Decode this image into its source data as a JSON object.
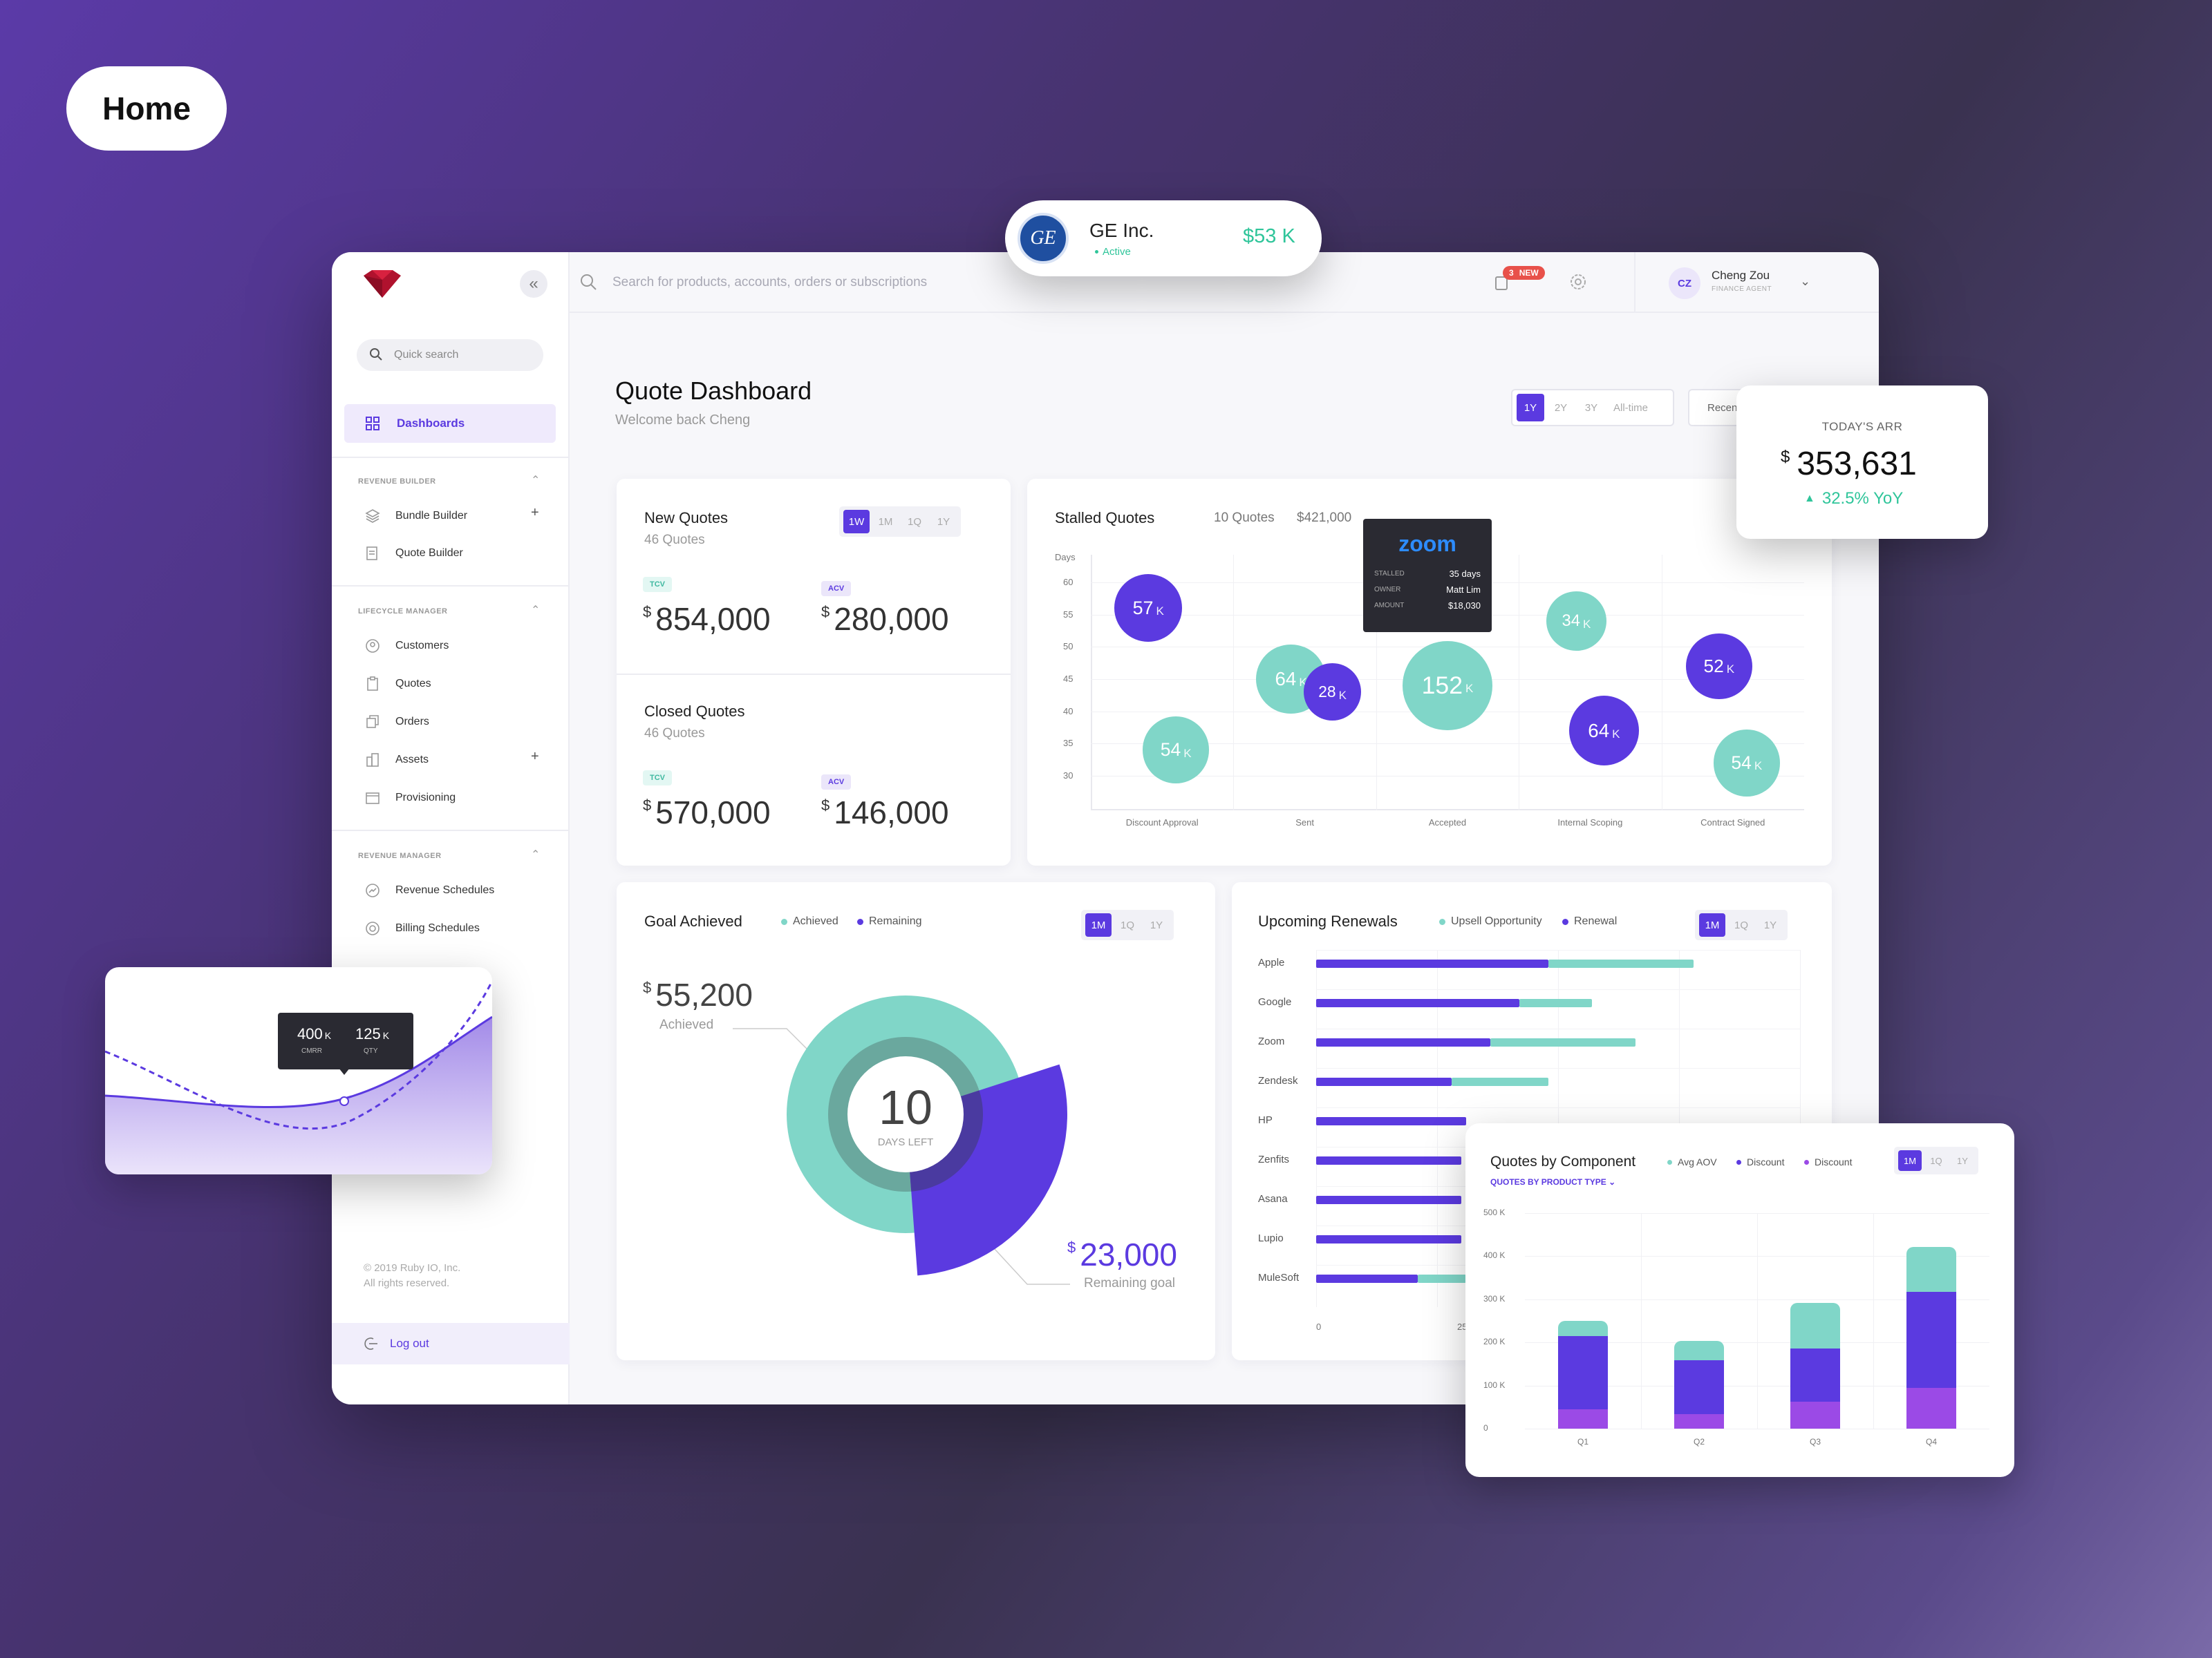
{
  "page": {
    "label": "Home"
  },
  "account_card": {
    "name": "GE Inc.",
    "status": "Active",
    "amount": "$53 K",
    "logo_text": "GE"
  },
  "arr_card": {
    "label": "TODAY'S ARR",
    "currency": "$",
    "value": "353,631",
    "change": "32.5% YoY"
  },
  "sidebar": {
    "quick_search_placeholder": "Quick search",
    "active_item": "Dashboards",
    "sections": [
      {
        "title": "REVENUE BUILDER",
        "items": [
          "Bundle Builder",
          "Quote Builder"
        ]
      },
      {
        "title": "LIFECYCLE MANAGER",
        "items": [
          "Customers",
          "Quotes",
          "Orders",
          "Assets",
          "Provisioning"
        ]
      },
      {
        "title": "REVENUE MANAGER",
        "items": [
          "Revenue Schedules",
          "Billing Schedules"
        ]
      }
    ],
    "copyright_line1": "© 2019 Ruby IO, Inc.",
    "copyright_line2": "All rights reserved.",
    "logout": "Log out"
  },
  "topbar": {
    "search_placeholder": "Search for products, accounts, orders or subscriptions",
    "notification_count": "3",
    "new_badge": "NEW",
    "user_initials": "CZ",
    "user_name": "Cheng Zou",
    "user_role": "FINANCE AGENT"
  },
  "header": {
    "title": "Quote Dashboard",
    "subtitle": "Welcome back Cheng",
    "ranges": [
      "1Y",
      "2Y",
      "3Y",
      "All-time"
    ],
    "active_range": "1Y",
    "recent_label": "Recen"
  },
  "new_quotes": {
    "title": "New Quotes",
    "count": "46 Quotes",
    "ranges": [
      "1W",
      "1M",
      "1Q",
      "1Y"
    ],
    "active_range": "1W",
    "tcv_label": "TCV",
    "tcv_currency": "$",
    "tcv": "854,000",
    "acv_label": "ACV",
    "acv_currency": "$",
    "acv": "280,000"
  },
  "closed_quotes": {
    "title": "Closed Quotes",
    "count": "46 Quotes",
    "tcv_label": "TCV",
    "tcv_currency": "$",
    "tcv": "570,000",
    "acv_label": "ACV",
    "acv_currency": "$",
    "acv": "146,000"
  },
  "stalled_quotes": {
    "title": "Stalled Quotes",
    "count": "10 Quotes",
    "total": "$421,000",
    "tooltip": {
      "brand": "zoom",
      "rows": [
        [
          "STALLED",
          "35 days"
        ],
        [
          "OWNER",
          "Matt Lim"
        ],
        [
          "AMOUNT",
          "$18,030"
        ]
      ]
    }
  },
  "goal": {
    "title": "Goal Achieved",
    "legend": [
      "Achieved",
      "Remaining"
    ],
    "ranges": [
      "1M",
      "1Q",
      "1Y"
    ],
    "active_range": "1M",
    "achieved_currency": "$",
    "achieved": "55,200",
    "achieved_label": "Achieved",
    "days_left": "10",
    "days_left_label": "DAYS LEFT",
    "remaining_currency": "$",
    "remaining": "23,000",
    "remaining_label": "Remaining goal"
  },
  "renewals": {
    "title": "Upcoming Renewals",
    "legend": [
      "Upsell Opportunity",
      "Renewal"
    ],
    "ranges": [
      "1M",
      "1Q",
      "1Y"
    ],
    "active_range": "1M",
    "x_ticks": [
      "0",
      "25 K"
    ]
  },
  "components": {
    "title": "Quotes by Component",
    "subtitle": "QUOTES BY PRODUCT TYPE",
    "legend": [
      "Avg AOV",
      "Discount",
      "Discount"
    ],
    "ranges": [
      "1M",
      "1Q",
      "1Y"
    ],
    "active_range": "1M"
  },
  "mini_chart": {
    "cmrr": "400",
    "cmrr_unit": "K",
    "cmrr_label": "CMRR",
    "qty": "125",
    "qty_unit": "K",
    "qty_label": "QTY"
  },
  "colors": {
    "purple": "#5b3ae0",
    "teal": "#80d6c8",
    "violet": "#9b4ae6",
    "green": "#2fc59a"
  },
  "chart_data": [
    {
      "type": "scatter",
      "title": "Stalled Quotes",
      "ylabel": "Days",
      "yticks": [
        60,
        55,
        50,
        45,
        40,
        35,
        30
      ],
      "categories": [
        "Discount Approval",
        "Sent",
        "Accepted",
        "Internal Scoping",
        "Contract Signed"
      ],
      "unit": "K",
      "points": [
        {
          "x": "Discount Approval",
          "y": 56,
          "value": 57,
          "color": "purple"
        },
        {
          "x": "Discount Approval",
          "y": 34,
          "value": 54,
          "color": "teal"
        },
        {
          "x": "Sent",
          "y": 45,
          "value": 64,
          "color": "teal"
        },
        {
          "x": "Sent",
          "y": 43,
          "value": 28,
          "color": "purple"
        },
        {
          "x": "Accepted",
          "y": 44,
          "value": 152,
          "color": "teal"
        },
        {
          "x": "Internal Scoping",
          "y": 54,
          "value": 34,
          "color": "teal"
        },
        {
          "x": "Internal Scoping",
          "y": 37,
          "value": 64,
          "color": "purple"
        },
        {
          "x": "Contract Signed",
          "y": 47,
          "value": 52,
          "color": "purple"
        },
        {
          "x": "Contract Signed",
          "y": 32,
          "value": 54,
          "color": "teal"
        }
      ]
    },
    {
      "type": "bar",
      "title": "Upcoming Renewals",
      "orientation": "horizontal",
      "categories": [
        "Apple",
        "Google",
        "Zoom",
        "Zendesk",
        "HP",
        "Zenfits",
        "Asana",
        "Lupio",
        "MuleSoft"
      ],
      "xlim": [
        0,
        100
      ],
      "series": [
        {
          "name": "Renewal",
          "values": [
            48,
            42,
            36,
            28,
            31,
            30,
            30,
            30,
            21
          ]
        },
        {
          "name": "Upsell Opportunity",
          "values": [
            30,
            15,
            30,
            20,
            0,
            0,
            0,
            0,
            10
          ]
        }
      ]
    },
    {
      "type": "bar",
      "title": "Quotes by Component",
      "stacked": true,
      "categories": [
        "Q1",
        "Q2",
        "Q3",
        "Q4"
      ],
      "yticks": [
        "0",
        "100 K",
        "200 K",
        "300 K",
        "400 K",
        "500 K"
      ],
      "ylim": [
        0,
        500
      ],
      "series": [
        {
          "color": "violet",
          "values": [
            45,
            33,
            63,
            95
          ]
        },
        {
          "color": "purple",
          "values": [
            170,
            125,
            123,
            222
          ]
        },
        {
          "color": "teal",
          "values": [
            35,
            45,
            105,
            105
          ]
        }
      ]
    },
    {
      "type": "pie",
      "title": "Goal Achieved",
      "labels": [
        "Achieved",
        "Remaining"
      ],
      "values": [
        55200,
        23000
      ]
    }
  ]
}
